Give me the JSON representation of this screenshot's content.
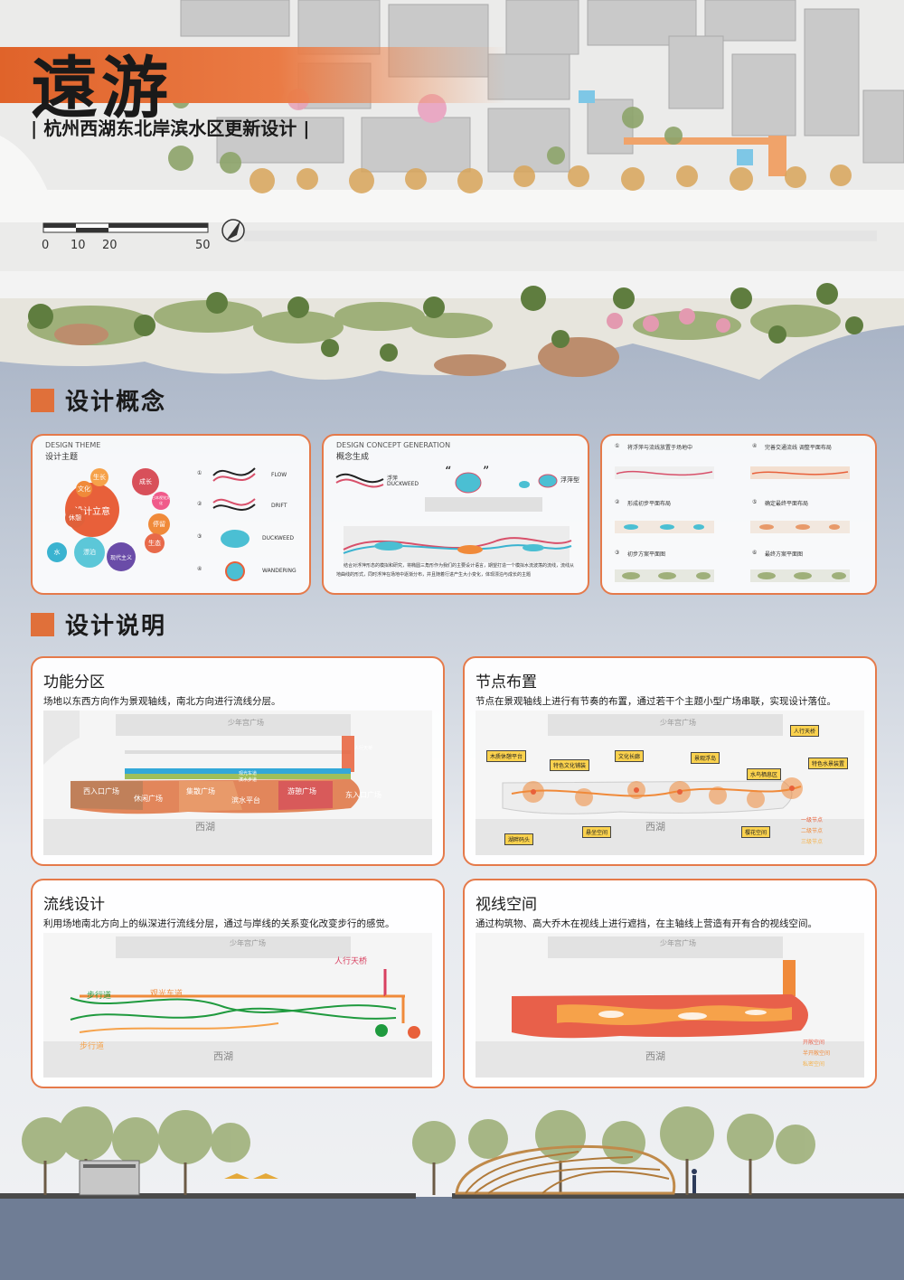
{
  "poster": {
    "title": "遠游",
    "subtitle": "| 杭州西湖东北岸滨水区更新设计 |"
  },
  "scale_bar": {
    "ticks": [
      "0",
      "10",
      "20",
      "50"
    ]
  },
  "sections": {
    "concept": "设计概念",
    "explanation": "设计说明"
  },
  "concept_cards": {
    "theme": {
      "en": "DESIGN THEME",
      "cn": "设计主题",
      "center": "设计立意",
      "bubbles": [
        "成长",
        "文化",
        "休憩",
        "水",
        "漂泊",
        "现代主义",
        "停留",
        "日本视觉文化",
        "生态",
        "生长"
      ],
      "words": [
        {
          "num": "①",
          "label": "FLOW"
        },
        {
          "num": "②",
          "label": "DRIFT"
        },
        {
          "num": "③",
          "label": "DUCKWEED"
        },
        {
          "num": "④",
          "label": "WANDERING"
        }
      ]
    },
    "generation": {
      "en": "DESIGN CONCEPT GENERATION",
      "cn": "概念生成",
      "float_cn": "浮萍",
      "float_en": "DUCKWEED",
      "float_type": "浮萍型",
      "caption_1": "结合对浮萍形态的模拟和研究，将椭圆三角形作为我们的主要设计语言，期望打造一个模拟水流波荡的流线，流线从",
      "caption_2": "地曲线的形式，同时浮萍在场地中逐渐分布，并且随着行进产生大小变化，体现漂泊与成长的主题"
    },
    "steps": [
      {
        "num": "①",
        "label": "将浮萍与流线放置于场地中"
      },
      {
        "num": "②",
        "label": "形成初步平面布局"
      },
      {
        "num": "③",
        "label": "初步方案平面图"
      },
      {
        "num": "④",
        "label": "完善交通流线 调整平面布局"
      },
      {
        "num": "⑤",
        "label": "确定最终平面布局"
      },
      {
        "num": "⑥",
        "label": "最终方案平面图"
      }
    ]
  },
  "design_cards": {
    "function": {
      "title": "功能分区",
      "desc": "场地以东西方向作为景观轴线，南北方向进行流线分层。",
      "zones": [
        "西入口广场",
        "休闲广场",
        "集散广场",
        "滨水平台",
        "游憩广场",
        "东入口广场"
      ],
      "road_cn": "观光车道",
      "road_walk": "滨水步道",
      "bridge": "人行天桥",
      "plaza": "少年宫广场",
      "lake": "西湖"
    },
    "nodes": {
      "title": "节点布置",
      "desc": "节点在景观轴线上进行有节奏的布置，通过若干个主题小型广场串联，实现设计落位。",
      "tags": [
        "人行天桥",
        "木质休憩平台",
        "文化长廊",
        "景观浮岛",
        "特色水景装置",
        "特色文化铺装",
        "水鸟栖息区",
        "湖畔码头",
        "悬坐空间",
        "樱花空间"
      ],
      "legend": [
        "一级节点",
        "二级节点",
        "三级节点"
      ],
      "plaza": "少年宫广场",
      "lake": "西湖"
    },
    "circulation": {
      "title": "流线设计",
      "desc": "利用场地南北方向上的纵深进行流线分层，通过与岸线的关系变化改变步行的感觉。",
      "walk_1": "步行道",
      "walk_2": "步行道",
      "car": "观光车道",
      "bridge": "人行天桥",
      "plaza": "少年宫广场",
      "lake": "西湖"
    },
    "sight": {
      "title": "视线空间",
      "desc": "通过构筑物、高大乔木在视线上进行遮挡，在主轴线上营造有开有合的视线空间。",
      "legend": [
        "开敞空间",
        "半开敞空间",
        "私密空间"
      ],
      "plaza": "少年宫广场",
      "lake": "西湖"
    }
  },
  "colors": {
    "accent": "#e0703a",
    "card_border": "#e57a4a",
    "water": "#a9b4c6",
    "tag": "#fbd24e",
    "walk_path": "#1f9a3e",
    "car_path": "#f08a2a"
  }
}
